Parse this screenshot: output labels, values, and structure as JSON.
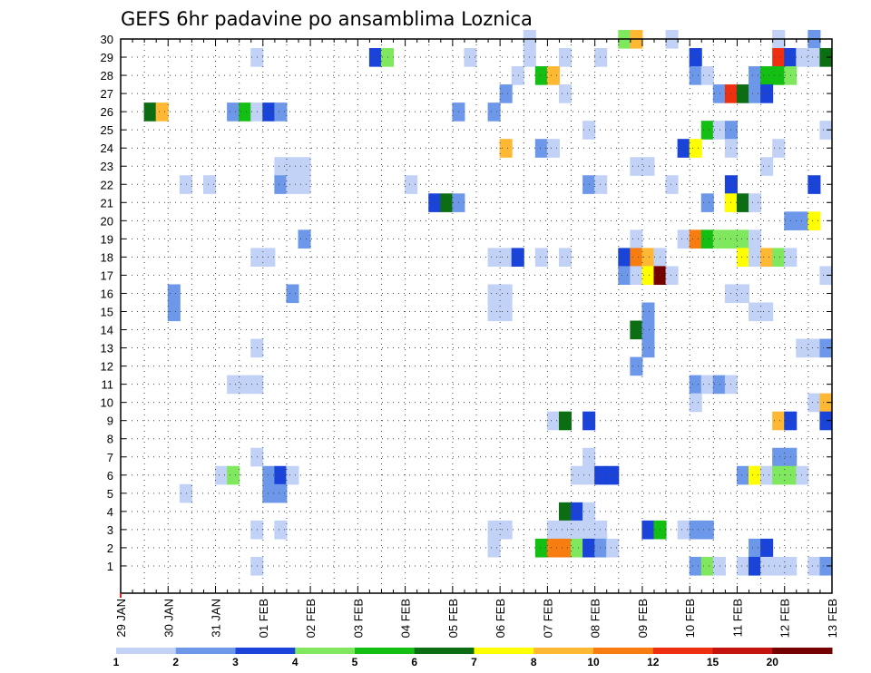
{
  "chart_data": {
    "type": "heatmap",
    "title": "GEFS 6hr padavine po ansamblima Loznica",
    "xlabel": "",
    "ylabel": "",
    "x_tick_labels": [
      "29 JAN",
      "30 JAN",
      "31 JAN",
      "01 FEB",
      "02 FEB",
      "03 FEB",
      "04 FEB",
      "05 FEB",
      "06 FEB",
      "07 FEB",
      "08 FEB",
      "09 FEB",
      "10 FEB",
      "11 FEB",
      "12 FEB",
      "13 FEB"
    ],
    "y_tick_labels": [
      "1",
      "2",
      "3",
      "4",
      "5",
      "6",
      "7",
      "8",
      "9",
      "10",
      "11",
      "12",
      "13",
      "14",
      "15",
      "16",
      "17",
      "18",
      "19",
      "20",
      "21",
      "22",
      "23",
      "24",
      "25",
      "26",
      "27",
      "28",
      "29",
      "30"
    ],
    "x_range_steps": [
      0,
      60
    ],
    "steps_per_day": 4,
    "grid": true,
    "colorbar": {
      "boundaries": [
        1,
        2,
        3,
        4,
        5,
        6,
        7,
        8,
        10,
        12,
        15,
        20
      ],
      "labels": [
        "1",
        "2",
        "3",
        "4",
        "5",
        "6",
        "7",
        "8",
        "10",
        "12",
        "15",
        "20"
      ],
      "colors": [
        "#c1d2f6",
        "#6d98e9",
        "#1a43d9",
        "#7fe85e",
        "#14bf14",
        "#0b6e12",
        "#ffff00",
        "#ffb833",
        "#f77d11",
        "#ee3010",
        "#c4120c",
        "#750000"
      ]
    },
    "cells": [
      [
        30,
        35,
        0
      ],
      [
        30,
        43,
        3
      ],
      [
        30,
        44,
        7
      ],
      [
        30,
        47,
        0
      ],
      [
        30,
        56,
        0
      ],
      [
        30,
        59,
        1
      ],
      [
        29,
        12,
        0
      ],
      [
        29,
        22,
        2
      ],
      [
        29,
        23,
        3
      ],
      [
        29,
        30,
        0
      ],
      [
        29,
        35,
        0
      ],
      [
        29,
        38,
        0
      ],
      [
        29,
        41,
        0
      ],
      [
        29,
        49,
        2
      ],
      [
        29,
        56,
        9
      ],
      [
        29,
        57,
        2
      ],
      [
        29,
        58,
        0
      ],
      [
        29,
        59,
        0
      ],
      [
        29,
        60,
        5
      ],
      [
        28,
        34,
        0
      ],
      [
        28,
        36,
        4
      ],
      [
        28,
        37,
        7
      ],
      [
        28,
        49,
        1
      ],
      [
        28,
        50,
        0
      ],
      [
        28,
        54,
        1
      ],
      [
        28,
        55,
        4
      ],
      [
        28,
        56,
        4
      ],
      [
        28,
        57,
        3
      ],
      [
        27,
        33,
        1
      ],
      [
        27,
        38,
        0
      ],
      [
        27,
        51,
        1
      ],
      [
        27,
        52,
        9
      ],
      [
        27,
        53,
        5
      ],
      [
        27,
        54,
        1
      ],
      [
        27,
        55,
        2
      ],
      [
        26,
        3,
        5
      ],
      [
        26,
        4,
        7
      ],
      [
        26,
        10,
        1
      ],
      [
        26,
        11,
        4
      ],
      [
        26,
        12,
        0
      ],
      [
        26,
        13,
        2
      ],
      [
        26,
        14,
        1
      ],
      [
        26,
        29,
        1
      ],
      [
        26,
        32,
        1
      ],
      [
        25,
        40,
        0
      ],
      [
        25,
        50,
        4
      ],
      [
        25,
        51,
        0
      ],
      [
        25,
        52,
        1
      ],
      [
        25,
        60,
        0
      ],
      [
        24,
        33,
        7
      ],
      [
        24,
        36,
        1
      ],
      [
        24,
        37,
        0
      ],
      [
        24,
        48,
        2
      ],
      [
        24,
        49,
        6
      ],
      [
        24,
        52,
        0
      ],
      [
        24,
        56,
        0
      ],
      [
        23,
        14,
        0
      ],
      [
        23,
        15,
        0
      ],
      [
        23,
        16,
        0
      ],
      [
        23,
        44,
        0
      ],
      [
        23,
        45,
        0
      ],
      [
        23,
        55,
        0
      ],
      [
        22,
        6,
        0
      ],
      [
        22,
        8,
        0
      ],
      [
        22,
        14,
        1
      ],
      [
        22,
        15,
        0
      ],
      [
        22,
        16,
        0
      ],
      [
        22,
        25,
        0
      ],
      [
        22,
        40,
        1
      ],
      [
        22,
        41,
        0
      ],
      [
        22,
        47,
        0
      ],
      [
        22,
        52,
        2
      ],
      [
        22,
        59,
        2
      ],
      [
        21,
        27,
        2
      ],
      [
        21,
        28,
        5
      ],
      [
        21,
        29,
        1
      ],
      [
        21,
        50,
        1
      ],
      [
        21,
        52,
        6
      ],
      [
        21,
        53,
        5
      ],
      [
        21,
        54,
        0
      ],
      [
        20,
        57,
        1
      ],
      [
        20,
        58,
        1
      ],
      [
        20,
        59,
        6
      ],
      [
        19,
        16,
        1
      ],
      [
        19,
        44,
        0
      ],
      [
        19,
        48,
        0
      ],
      [
        19,
        49,
        8
      ],
      [
        19,
        50,
        4
      ],
      [
        19,
        51,
        3
      ],
      [
        19,
        52,
        3
      ],
      [
        19,
        53,
        3
      ],
      [
        19,
        54,
        0
      ],
      [
        18,
        12,
        0
      ],
      [
        18,
        13,
        0
      ],
      [
        18,
        32,
        0
      ],
      [
        18,
        33,
        0
      ],
      [
        18,
        34,
        2
      ],
      [
        18,
        36,
        0
      ],
      [
        18,
        38,
        0
      ],
      [
        18,
        43,
        2
      ],
      [
        18,
        44,
        8
      ],
      [
        18,
        45,
        7
      ],
      [
        18,
        46,
        0
      ],
      [
        18,
        53,
        6
      ],
      [
        18,
        54,
        0
      ],
      [
        18,
        55,
        7
      ],
      [
        18,
        56,
        3
      ],
      [
        18,
        57,
        0
      ],
      [
        17,
        43,
        1
      ],
      [
        17,
        44,
        0
      ],
      [
        17,
        45,
        6
      ],
      [
        17,
        46,
        11
      ],
      [
        17,
        47,
        0
      ],
      [
        17,
        60,
        0
      ],
      [
        16,
        5,
        1
      ],
      [
        16,
        15,
        1
      ],
      [
        16,
        32,
        0
      ],
      [
        16,
        33,
        0
      ],
      [
        16,
        52,
        0
      ],
      [
        16,
        53,
        0
      ],
      [
        15,
        5,
        1
      ],
      [
        15,
        32,
        0
      ],
      [
        15,
        33,
        0
      ],
      [
        15,
        45,
        1
      ],
      [
        15,
        54,
        0
      ],
      [
        15,
        55,
        0
      ],
      [
        14,
        44,
        5
      ],
      [
        14,
        45,
        1
      ],
      [
        13,
        12,
        0
      ],
      [
        13,
        45,
        1
      ],
      [
        13,
        58,
        0
      ],
      [
        13,
        59,
        0
      ],
      [
        13,
        60,
        1
      ],
      [
        12,
        44,
        1
      ],
      [
        11,
        10,
        0
      ],
      [
        11,
        11,
        0
      ],
      [
        11,
        12,
        0
      ],
      [
        11,
        49,
        1
      ],
      [
        11,
        50,
        0
      ],
      [
        11,
        51,
        1
      ],
      [
        11,
        52,
        0
      ],
      [
        10,
        49,
        0
      ],
      [
        10,
        59,
        0
      ],
      [
        10,
        60,
        7
      ],
      [
        9,
        37,
        0
      ],
      [
        9,
        38,
        5
      ],
      [
        9,
        40,
        2
      ],
      [
        9,
        56,
        7
      ],
      [
        9,
        57,
        2
      ],
      [
        9,
        60,
        2
      ],
      [
        7,
        12,
        0
      ],
      [
        7,
        40,
        0
      ],
      [
        7,
        56,
        1
      ],
      [
        7,
        57,
        1
      ],
      [
        6,
        9,
        0
      ],
      [
        6,
        10,
        3
      ],
      [
        6,
        13,
        1
      ],
      [
        6,
        14,
        2
      ],
      [
        6,
        15,
        0
      ],
      [
        6,
        39,
        0
      ],
      [
        6,
        40,
        0
      ],
      [
        6,
        41,
        2
      ],
      [
        6,
        42,
        2
      ],
      [
        6,
        53,
        1
      ],
      [
        6,
        54,
        6
      ],
      [
        6,
        55,
        0
      ],
      [
        6,
        56,
        3
      ],
      [
        6,
        57,
        3
      ],
      [
        6,
        58,
        0
      ],
      [
        5,
        6,
        0
      ],
      [
        5,
        13,
        1
      ],
      [
        5,
        14,
        1
      ],
      [
        4,
        38,
        5
      ],
      [
        4,
        39,
        2
      ],
      [
        4,
        40,
        0
      ],
      [
        3,
        12,
        0
      ],
      [
        3,
        14,
        0
      ],
      [
        3,
        32,
        0
      ],
      [
        3,
        33,
        0
      ],
      [
        3,
        37,
        0
      ],
      [
        3,
        38,
        0
      ],
      [
        3,
        39,
        0
      ],
      [
        3,
        40,
        0
      ],
      [
        3,
        41,
        0
      ],
      [
        3,
        45,
        2
      ],
      [
        3,
        46,
        4
      ],
      [
        3,
        48,
        0
      ],
      [
        3,
        49,
        1
      ],
      [
        3,
        50,
        1
      ],
      [
        2,
        32,
        0
      ],
      [
        2,
        36,
        4
      ],
      [
        2,
        37,
        8
      ],
      [
        2,
        38,
        8
      ],
      [
        2,
        39,
        3
      ],
      [
        2,
        40,
        2
      ],
      [
        2,
        41,
        1
      ],
      [
        2,
        42,
        0
      ],
      [
        2,
        54,
        1
      ],
      [
        2,
        55,
        2
      ],
      [
        1,
        12,
        0
      ],
      [
        1,
        49,
        1
      ],
      [
        1,
        50,
        3
      ],
      [
        1,
        51,
        0
      ],
      [
        1,
        53,
        0
      ],
      [
        1,
        54,
        2
      ],
      [
        1,
        55,
        0
      ],
      [
        1,
        56,
        0
      ],
      [
        1,
        57,
        0
      ],
      [
        1,
        59,
        0
      ],
      [
        1,
        60,
        1
      ]
    ]
  }
}
